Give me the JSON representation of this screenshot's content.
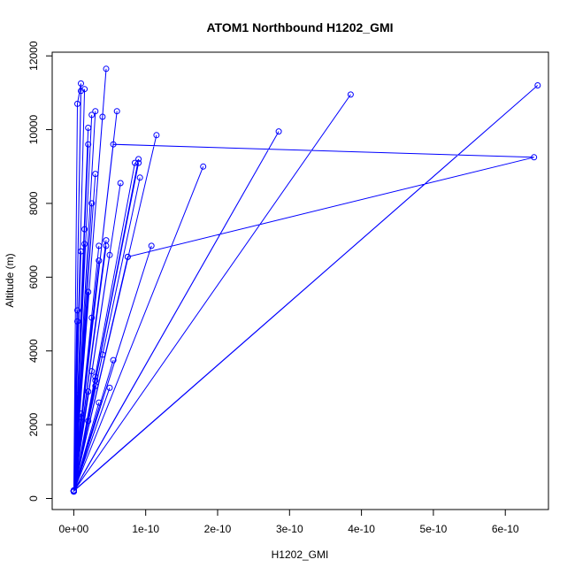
{
  "chart_data": {
    "type": "line",
    "title": "ATOM1 Northbound H1202_GMI",
    "xlabel": "H1202_GMI",
    "ylabel": "Altitude (m)",
    "xlim": [
      -3e-11,
      6.6e-10
    ],
    "ylim": [
      -300,
      12100
    ],
    "x_ticks": [
      {
        "value": 0,
        "label": "0e+00"
      },
      {
        "value": 1e-10,
        "label": "1e-10"
      },
      {
        "value": 2e-10,
        "label": "2e-10"
      },
      {
        "value": 3e-10,
        "label": "3e-10"
      },
      {
        "value": 4e-10,
        "label": "4e-10"
      },
      {
        "value": 5e-10,
        "label": "5e-10"
      },
      {
        "value": 6e-10,
        "label": "6e-10"
      }
    ],
    "y_ticks": [
      {
        "value": 0,
        "label": "0"
      },
      {
        "value": 2000,
        "label": "2000"
      },
      {
        "value": 4000,
        "label": "4000"
      },
      {
        "value": 6000,
        "label": "6000"
      },
      {
        "value": 8000,
        "label": "8000"
      },
      {
        "value": 10000,
        "label": "10000"
      },
      {
        "value": 12000,
        "label": "12000"
      }
    ],
    "series_color": "#0000ff",
    "marker": "open-circle",
    "series": [
      {
        "x": [
          0.0,
          5e-12,
          1e-11,
          0.0,
          1.5e-11,
          0.0,
          2.5e-11,
          0.0,
          3e-11,
          0.0,
          1e-11,
          0.0,
          2e-11,
          0.0,
          4.5e-11,
          0.0,
          2e-11,
          0.0,
          5e-12,
          0.0,
          3e-11,
          0.0,
          4e-11,
          0.0,
          1e-11,
          0.0,
          2.5e-11,
          0.0,
          6e-11,
          0.0,
          1.5e-11,
          0.0,
          3.5e-11,
          0.0,
          5e-11,
          0.0,
          5e-12,
          0.0,
          2e-11,
          0.0,
          9e-11,
          0.0,
          1.15e-10,
          0.0,
          3e-11,
          0.0,
          1e-11,
          0.0,
          8.5e-11,
          0.0,
          2.5e-11,
          0.0,
          6.5e-11,
          0.0,
          4.5e-11,
          0.0,
          2e-11,
          0.0,
          1.08e-10,
          0.0,
          5.5e-11,
          0.0,
          5e-12,
          0.0,
          3.5e-11,
          0.0,
          7.5e-11,
          0.0,
          1.8e-10,
          0.0,
          3e-11,
          0.0,
          1e-11,
          0.0,
          2.5e-11,
          0.0,
          4e-11,
          0.0,
          2.85e-10,
          0.0,
          1.5e-11,
          0.0,
          5e-11,
          0.0,
          3.5e-11,
          0.0,
          2e-11,
          0.0,
          3.85e-10,
          0.0,
          4.5e-11,
          0.0,
          9.2e-11,
          0.0,
          3e-11,
          0.0,
          6.45e-10,
          0.0,
          5.5e-11,
          6.4e-10,
          7.5e-11,
          0.0,
          9e-11,
          0.0,
          5e-12,
          0.0
        ],
        "y": [
          190,
          10700,
          11250,
          200,
          11100,
          200,
          10400,
          210,
          10500,
          220,
          11050,
          200,
          9600,
          200,
          11650,
          190,
          10050,
          200,
          4800,
          210,
          8800,
          200,
          10350,
          200,
          6700,
          210,
          8000,
          200,
          10500,
          200,
          7300,
          210,
          6850,
          200,
          6600,
          190,
          2800,
          200,
          5600,
          210,
          9200,
          200,
          9850,
          200,
          3200,
          210,
          2200,
          200,
          9100,
          200,
          4900,
          210,
          8550,
          200,
          6850,
          200,
          2900,
          210,
          6850,
          200,
          3750,
          190,
          5100,
          200,
          6450,
          210,
          6550,
          200,
          9000,
          200,
          3050,
          210,
          2300,
          200,
          3450,
          200,
          3900,
          210,
          9950,
          200,
          6900,
          200,
          3000,
          210,
          2600,
          200,
          2100,
          200,
          10950,
          200,
          7000,
          210,
          8700,
          200,
          3300,
          200,
          11200,
          210,
          9600,
          9250,
          6550,
          200,
          9100,
          200,
          650,
          200
        ]
      }
    ]
  }
}
